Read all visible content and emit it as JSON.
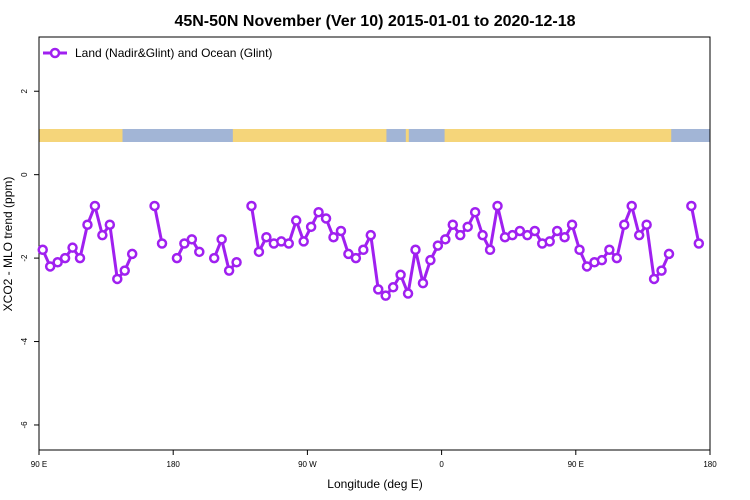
{
  "chart_data": {
    "type": "line",
    "title": "45N-50N November (Ver 10)   2015-01-01 to 2020-12-18",
    "xlabel": "Longitude (deg E)",
    "ylabel": "XCO2 - MLO trend (ppm)",
    "xlim": [
      90,
      540
    ],
    "ylim": [
      -6.6,
      3.3
    ],
    "x_ticks": [
      {
        "value": 90,
        "label": "90 E"
      },
      {
        "value": 180,
        "label": "180"
      },
      {
        "value": 270,
        "label": "90 W"
      },
      {
        "value": 360,
        "label": "0"
      },
      {
        "value": 450,
        "label": "90 E"
      },
      {
        "value": 540,
        "label": "180"
      }
    ],
    "y_ticks": [
      {
        "value": 2,
        "label": "2"
      },
      {
        "value": 0,
        "label": "0"
      },
      {
        "value": -2,
        "label": "-2"
      },
      {
        "value": -4,
        "label": "-4"
      },
      {
        "value": -6,
        "label": "-6"
      }
    ],
    "legend": {
      "position": "top-left",
      "entry": "Land (Nadir&Glint) and Ocean (Glint)"
    },
    "series_color": "#a020f0",
    "map_strip": {
      "land_color": "#f5d57a",
      "ocean_color": "#a2b5d6"
    },
    "series": [
      {
        "name": "Land (Nadir&Glint) and Ocean (Glint)",
        "segments": [
          [
            [
              92.5,
              -1.8
            ],
            [
              97.5,
              -2.2
            ],
            [
              102.5,
              -2.1
            ],
            [
              107.5,
              -2.0
            ],
            [
              112.5,
              -1.75
            ],
            [
              117.5,
              -2.0
            ],
            [
              122.5,
              -1.2
            ],
            [
              127.5,
              -0.75
            ],
            [
              132.5,
              -1.45
            ],
            [
              137.5,
              -1.2
            ],
            [
              142.5,
              -2.5
            ],
            [
              147.5,
              -2.3
            ],
            [
              152.5,
              -1.9
            ]
          ],
          [
            [
              167.5,
              -0.75
            ],
            [
              172.5,
              -1.65
            ]
          ],
          [
            [
              182.5,
              -2.0
            ],
            [
              187.5,
              -1.65
            ],
            [
              192.5,
              -1.55
            ],
            [
              197.5,
              -1.85
            ]
          ],
          [
            [
              207.5,
              -2.0
            ],
            [
              212.5,
              -1.55
            ],
            [
              217.5,
              -2.3
            ],
            [
              222.5,
              -2.1
            ]
          ],
          [
            [
              232.5,
              -0.75
            ],
            [
              237.5,
              -1.85
            ],
            [
              242.5,
              -1.5
            ],
            [
              247.5,
              -1.65
            ],
            [
              252.5,
              -1.6
            ],
            [
              257.5,
              -1.65
            ],
            [
              262.5,
              -1.1
            ],
            [
              267.5,
              -1.6
            ],
            [
              272.5,
              -1.25
            ],
            [
              277.5,
              -0.9
            ],
            [
              282.5,
              -1.05
            ],
            [
              287.5,
              -1.5
            ],
            [
              292.5,
              -1.35
            ],
            [
              297.5,
              -1.9
            ],
            [
              302.5,
              -2.0
            ],
            [
              307.5,
              -1.8
            ],
            [
              312.5,
              -1.45
            ],
            [
              317.5,
              -2.75
            ],
            [
              322.5,
              -2.9
            ],
            [
              327.5,
              -2.7
            ],
            [
              332.5,
              -2.4
            ],
            [
              337.5,
              -2.85
            ],
            [
              342.5,
              -1.8
            ],
            [
              347.5,
              -2.6
            ],
            [
              352.5,
              -2.05
            ],
            [
              357.5,
              -1.7
            ],
            [
              362.5,
              -1.55
            ],
            [
              367.5,
              -1.2
            ],
            [
              372.5,
              -1.45
            ],
            [
              377.5,
              -1.25
            ],
            [
              382.5,
              -0.9
            ],
            [
              387.5,
              -1.45
            ],
            [
              392.5,
              -1.8
            ],
            [
              397.5,
              -0.75
            ],
            [
              402.5,
              -1.5
            ],
            [
              407.5,
              -1.45
            ],
            [
              412.5,
              -1.35
            ],
            [
              417.5,
              -1.45
            ],
            [
              422.5,
              -1.35
            ],
            [
              427.5,
              -1.65
            ],
            [
              432.5,
              -1.6
            ],
            [
              437.5,
              -1.35
            ],
            [
              442.5,
              -1.5
            ],
            [
              447.5,
              -1.2
            ],
            [
              452.5,
              -1.8
            ],
            [
              457.5,
              -2.2
            ],
            [
              462.5,
              -2.1
            ],
            [
              467.5,
              -2.05
            ],
            [
              472.5,
              -1.8
            ],
            [
              477.5,
              -2.0
            ],
            [
              482.5,
              -1.2
            ],
            [
              487.5,
              -0.75
            ],
            [
              492.5,
              -1.45
            ],
            [
              497.5,
              -1.2
            ],
            [
              502.5,
              -2.5
            ],
            [
              507.5,
              -2.3
            ],
            [
              512.5,
              -1.9
            ]
          ],
          [
            [
              527.5,
              -0.75
            ],
            [
              532.5,
              -1.65
            ]
          ]
        ]
      }
    ]
  }
}
